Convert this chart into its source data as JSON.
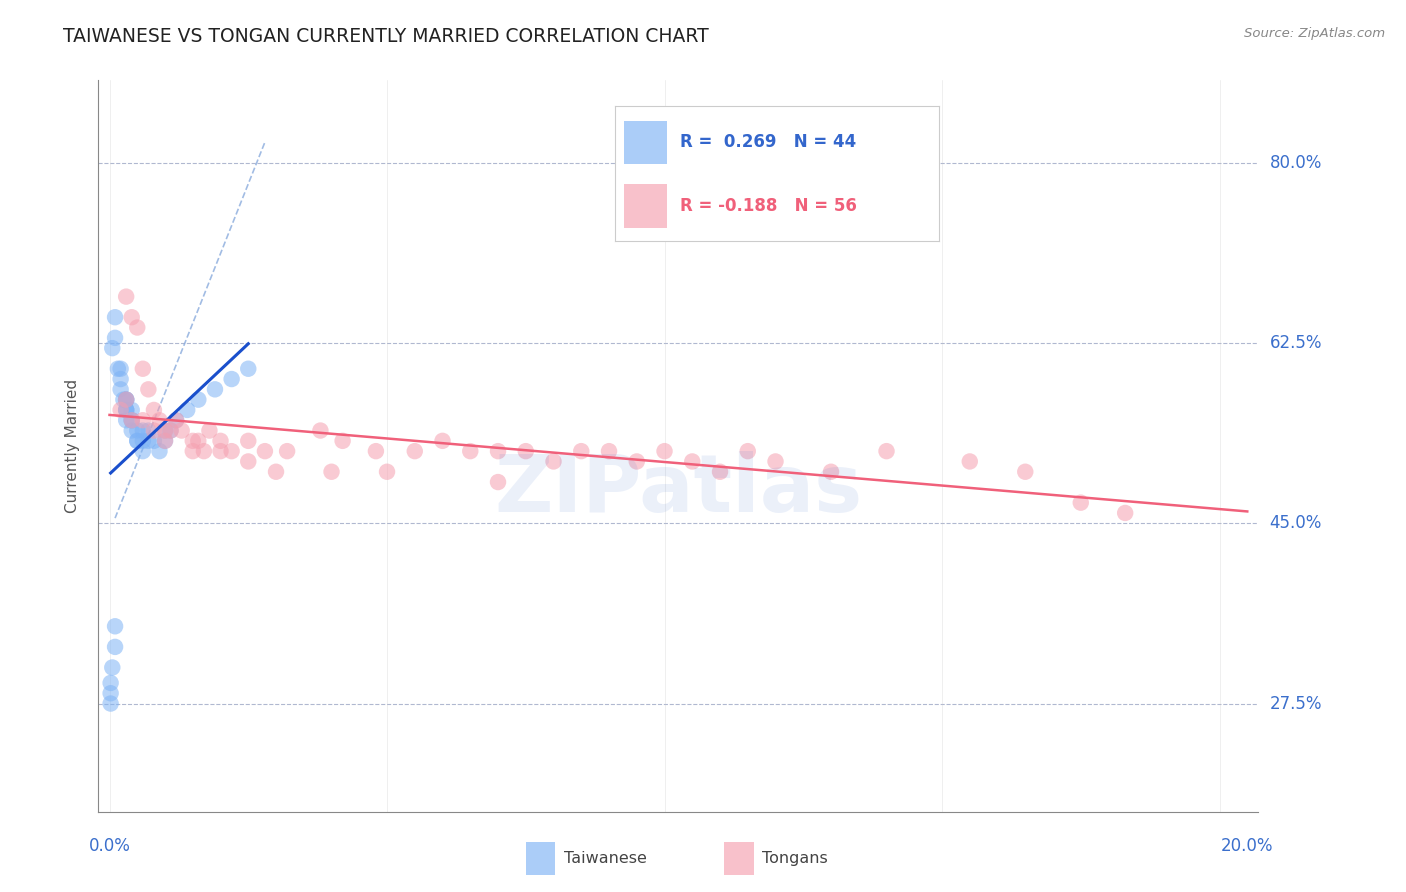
{
  "title": "TAIWANESE VS TONGAN CURRENTLY MARRIED CORRELATION CHART",
  "source": "Source: ZipAtlas.com",
  "ylabel": "Currently Married",
  "ytick_labels": [
    "80.0%",
    "62.5%",
    "45.0%",
    "27.5%"
  ],
  "ytick_values": [
    0.8,
    0.625,
    0.45,
    0.275
  ],
  "xtick_labels": [
    "0.0%",
    "",
    "",
    "",
    "20.0%"
  ],
  "xtick_values": [
    0.0,
    0.05,
    0.1,
    0.15,
    0.2
  ],
  "ymin": 0.17,
  "ymax": 0.88,
  "xmin": -0.002,
  "xmax": 0.207,
  "watermark": "ZIPatlas",
  "taiwanese_color": "#7EB3F5",
  "tongan_color": "#F5A0B0",
  "trend_taiwanese_color": "#1A4FCC",
  "trend_tongan_color": "#F0607A",
  "diagonal_color": "#8AABDD",
  "title_fontsize": 13.5,
  "axis_label_fontsize": 11,
  "tick_fontsize": 12,
  "tw_x": [
    0.0005,
    0.001,
    0.001,
    0.0015,
    0.002,
    0.002,
    0.002,
    0.0025,
    0.003,
    0.003,
    0.003,
    0.003,
    0.003,
    0.003,
    0.003,
    0.004,
    0.004,
    0.004,
    0.004,
    0.005,
    0.005,
    0.005,
    0.006,
    0.006,
    0.006,
    0.007,
    0.007,
    0.008,
    0.009,
    0.01,
    0.01,
    0.011,
    0.012,
    0.014,
    0.016,
    0.019,
    0.022,
    0.025,
    0.0002,
    0.0002,
    0.0002,
    0.0005,
    0.001,
    0.001
  ],
  "tw_y": [
    0.62,
    0.63,
    0.65,
    0.6,
    0.58,
    0.59,
    0.6,
    0.57,
    0.55,
    0.56,
    0.56,
    0.57,
    0.57,
    0.56,
    0.57,
    0.54,
    0.55,
    0.55,
    0.56,
    0.53,
    0.53,
    0.54,
    0.52,
    0.53,
    0.54,
    0.53,
    0.54,
    0.53,
    0.52,
    0.53,
    0.54,
    0.54,
    0.55,
    0.56,
    0.57,
    0.58,
    0.59,
    0.6,
    0.275,
    0.285,
    0.295,
    0.31,
    0.33,
    0.35
  ],
  "to_x": [
    0.003,
    0.004,
    0.005,
    0.006,
    0.007,
    0.008,
    0.009,
    0.01,
    0.011,
    0.012,
    0.013,
    0.015,
    0.016,
    0.017,
    0.018,
    0.02,
    0.022,
    0.025,
    0.028,
    0.032,
    0.038,
    0.042,
    0.048,
    0.055,
    0.06,
    0.065,
    0.07,
    0.075,
    0.08,
    0.085,
    0.09,
    0.095,
    0.1,
    0.105,
    0.11,
    0.115,
    0.12,
    0.13,
    0.14,
    0.155,
    0.165,
    0.175,
    0.183,
    0.002,
    0.003,
    0.004,
    0.006,
    0.008,
    0.01,
    0.015,
    0.02,
    0.025,
    0.03,
    0.04,
    0.05,
    0.07
  ],
  "to_y": [
    0.67,
    0.65,
    0.64,
    0.6,
    0.58,
    0.56,
    0.55,
    0.54,
    0.54,
    0.55,
    0.54,
    0.53,
    0.53,
    0.52,
    0.54,
    0.53,
    0.52,
    0.53,
    0.52,
    0.52,
    0.54,
    0.53,
    0.52,
    0.52,
    0.53,
    0.52,
    0.52,
    0.52,
    0.51,
    0.52,
    0.52,
    0.51,
    0.52,
    0.51,
    0.5,
    0.52,
    0.51,
    0.5,
    0.52,
    0.51,
    0.5,
    0.47,
    0.46,
    0.56,
    0.57,
    0.55,
    0.55,
    0.54,
    0.53,
    0.52,
    0.52,
    0.51,
    0.5,
    0.5,
    0.5,
    0.49
  ]
}
